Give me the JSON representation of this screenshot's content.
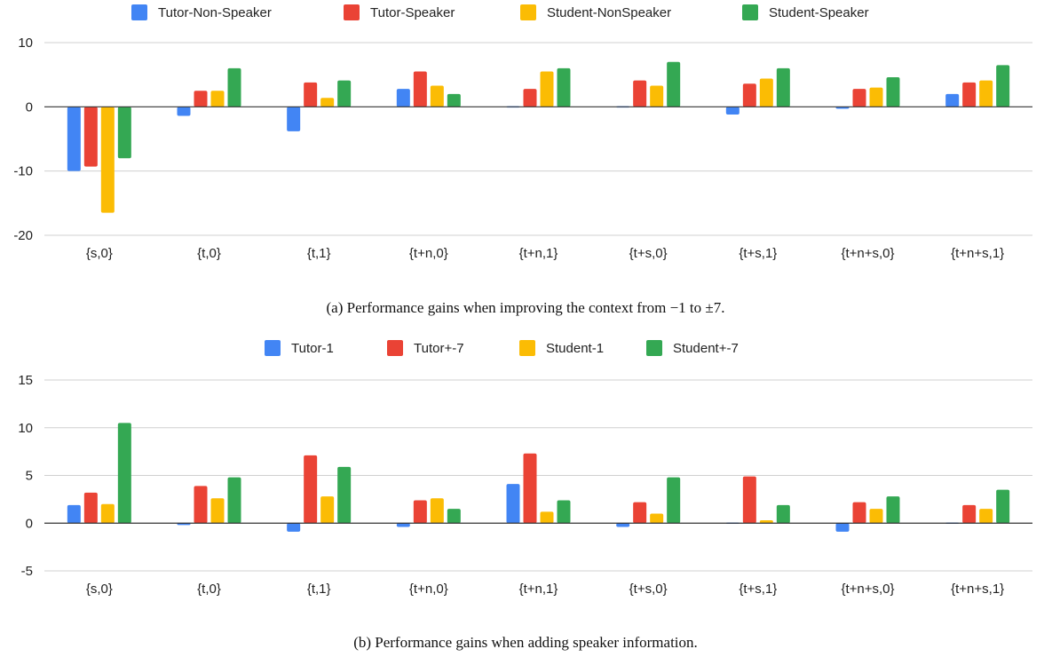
{
  "chart_data": [
    {
      "type": "bar",
      "categories": [
        "{s,0}",
        "{t,0}",
        "{t,1}",
        "{t+n,0}",
        "{t+n,1}",
        "{t+s,0}",
        "{t+s,1}",
        "{t+n+s,0}",
        "{t+n+s,1}"
      ],
      "series": [
        {
          "name": "Tutor-Non-Speaker",
          "color": "#4285F4",
          "values": [
            -10.0,
            -1.4,
            -3.8,
            2.8,
            0.1,
            0.1,
            -1.2,
            -0.3,
            2.0
          ]
        },
        {
          "name": "Tutor-Speaker",
          "color": "#EA4335",
          "values": [
            -9.3,
            2.5,
            3.8,
            5.5,
            2.8,
            4.1,
            3.6,
            2.8,
            3.8
          ]
        },
        {
          "name": "Student-NonSpeaker",
          "color": "#FBBC04",
          "values": [
            -16.5,
            2.5,
            1.4,
            3.3,
            5.5,
            3.3,
            4.4,
            3.0,
            4.1
          ]
        },
        {
          "name": "Student-Speaker",
          "color": "#34A853",
          "values": [
            -8.0,
            6.0,
            4.1,
            2.0,
            6.0,
            7.0,
            6.0,
            4.6,
            6.5
          ]
        }
      ],
      "ylim": [
        -20,
        10
      ],
      "yticks": [
        10,
        0,
        -10,
        -20
      ],
      "legend_position": "top",
      "grid": true,
      "caption": "(a) Performance gains when improving the context from −1 to ±7."
    },
    {
      "type": "bar",
      "categories": [
        "{s,0}",
        "{t,0}",
        "{t,1}",
        "{t+n,0}",
        "{t+n,1}",
        "{t+s,0}",
        "{t+s,1}",
        "{t+n+s,0}",
        "{t+n+s,1}"
      ],
      "series": [
        {
          "name": "Tutor-1",
          "color": "#4285F4",
          "values": [
            1.9,
            -0.2,
            -0.9,
            -0.4,
            4.1,
            -0.4,
            -0.1,
            -0.9,
            -0.1
          ]
        },
        {
          "name": "Tutor+-7",
          "color": "#EA4335",
          "values": [
            3.2,
            3.9,
            7.1,
            2.4,
            7.3,
            2.2,
            4.9,
            2.2,
            1.9
          ]
        },
        {
          "name": "Student-1",
          "color": "#FBBC04",
          "values": [
            2.0,
            2.6,
            2.8,
            2.6,
            1.2,
            1.0,
            0.3,
            1.5,
            1.5
          ]
        },
        {
          "name": "Student+-7",
          "color": "#34A853",
          "values": [
            10.5,
            4.8,
            5.9,
            1.5,
            2.4,
            4.8,
            1.9,
            2.8,
            3.5
          ]
        }
      ],
      "ylim": [
        -5,
        15
      ],
      "yticks": [
        15,
        10,
        5,
        0,
        -5
      ],
      "legend_position": "top",
      "grid": true,
      "caption": "(b) Performance gains when adding speaker information."
    }
  ]
}
